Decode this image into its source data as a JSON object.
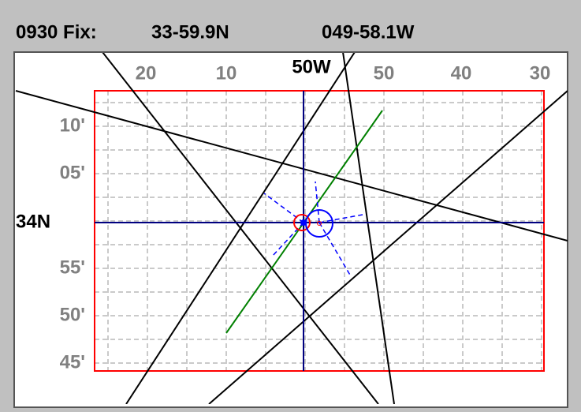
{
  "header": {
    "fix_label": "0930 Fix:",
    "latitude": "33-59.9N",
    "longitude": "049-58.1W"
  },
  "top_labels": [
    "20",
    "10",
    "50W",
    "50",
    "40",
    "30"
  ],
  "left_labels": [
    "10'",
    "05'",
    "34N",
    "55'",
    "50'",
    "45'"
  ]
}
